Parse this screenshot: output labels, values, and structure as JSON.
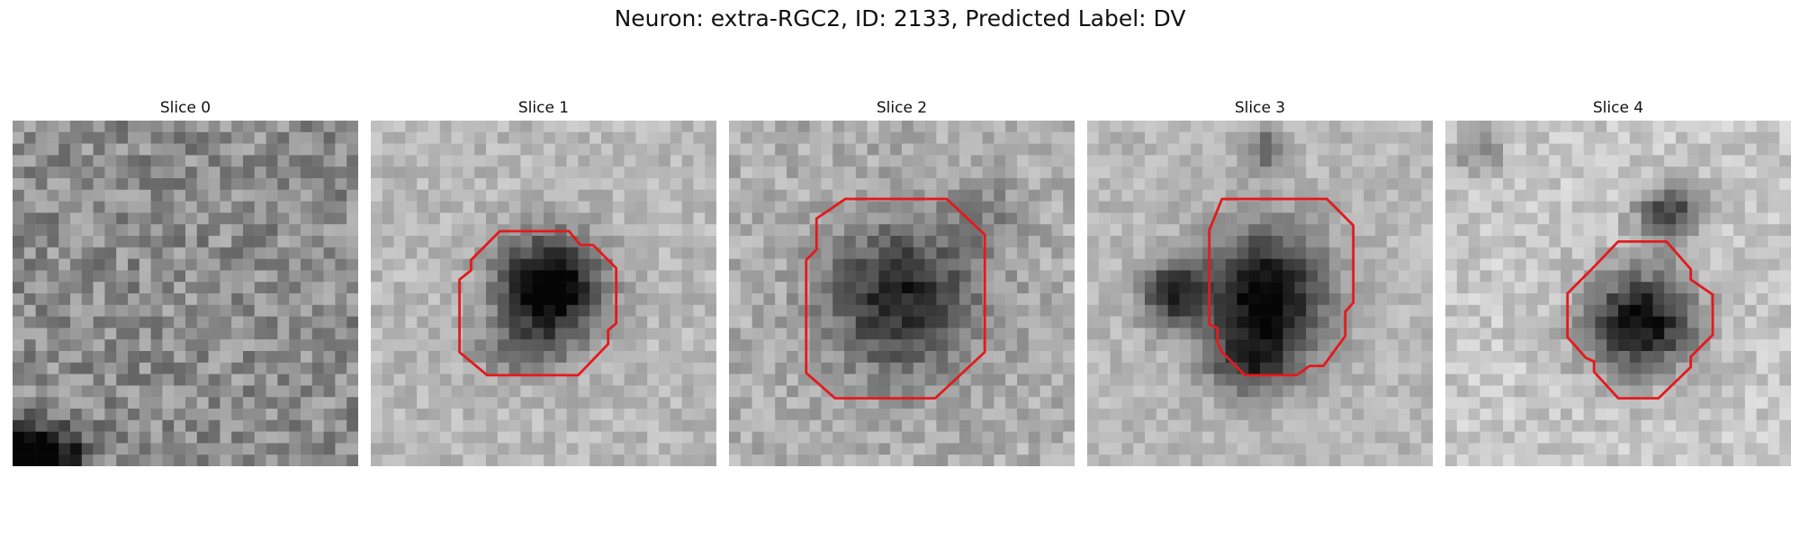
{
  "figure": {
    "title": "Neuron: extra-RGC2, ID: 2133, Predicted Label: DV"
  },
  "panels": [
    {
      "title": "Slice 0",
      "has_contour": false,
      "image_description_id": "noise-field"
    },
    {
      "title": "Slice 1",
      "has_contour": true,
      "image_description_id": "dark-cell"
    },
    {
      "title": "Slice 2",
      "has_contour": true,
      "image_description_id": "dark-cell"
    },
    {
      "title": "Slice 3",
      "has_contour": true,
      "image_description_id": "dark-cell"
    },
    {
      "title": "Slice 4",
      "has_contour": true,
      "image_description_id": "dark-cell"
    }
  ],
  "colors": {
    "contour": "#e31a1c",
    "background": "#ffffff"
  }
}
